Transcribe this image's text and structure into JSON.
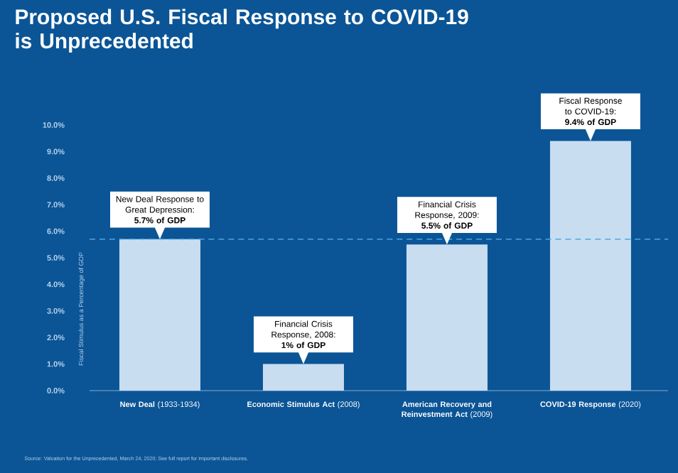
{
  "chart_data": {
    "type": "bar",
    "title": "Proposed U.S. Fiscal Response to COVID-19 is Unprecedented",
    "ylabel": "Fiscal Stimulus as a Percentage of GDP",
    "categories": [
      "**New Deal** (1933-1934)",
      "**Economic Stimulus Act** (2008)",
      "**American Recovery and Reinvestment Act** (2009)",
      "**COVID-19 Response** (2020)"
    ],
    "values": [
      5.7,
      1,
      5.5,
      9.4
    ],
    "color": "#c9ddf1",
    "ylim": [
      0,
      10
    ],
    "yticks": [
      {
        "value": 0,
        "label": "0.0%"
      },
      {
        "value": 1,
        "label": "1.0%"
      },
      {
        "value": 2,
        "label": "2.0%"
      },
      {
        "value": 3,
        "label": "3.0%"
      },
      {
        "value": 4,
        "label": "4.0%"
      },
      {
        "value": 5,
        "label": "5.0%"
      },
      {
        "value": 6,
        "label": "6.0%"
      },
      {
        "value": 7,
        "label": "7.0%"
      },
      {
        "value": 8,
        "label": "8.0%"
      },
      {
        "value": 9,
        "label": "9.0%"
      },
      {
        "value": 10,
        "label": "10.0%"
      }
    ],
    "ref_lines": [
      {
        "axis": "y",
        "value": 5.7,
        "color": "#4ea6e0",
        "line_style": "dashed"
      }
    ],
    "annotations": [
      {
        "text": "New Deal Response to Great Depression: **5.7% of GDP**",
        "x": "**New Deal** (1933-1934)",
        "y": 5.7
      },
      {
        "text": "Financial Crisis Response, 2008: **1% of GDP**",
        "x": "**Economic Stimulus Act** (2008)",
        "y": 1
      },
      {
        "text": "Financial Crisis Response, 2009: **5.5% of GDP**",
        "x": "**American Recovery and Reinvestment Act** (2009)",
        "y": 5.5
      },
      {
        "text": "Fiscal Response to COVID-19: **9.4% of GDP**",
        "x": "**COVID-19 Response** (2020)",
        "y": 9.4
      },
      "Source: Valuation for the Unprecedented, March 24, 2020; See full report for important disclosures."
    ],
    "grid": false
  }
}
